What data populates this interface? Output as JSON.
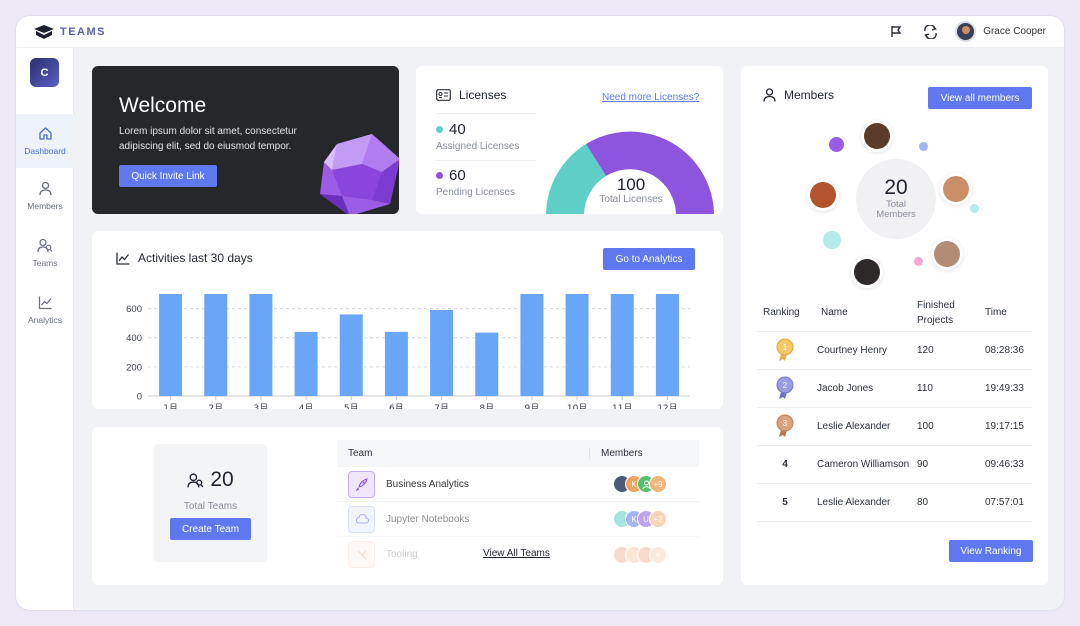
{
  "brand": {
    "name": "TEAMS"
  },
  "user": {
    "name": "Grace Cooper"
  },
  "icons": {
    "flag": "flag-icon",
    "sync": "sync-icon"
  },
  "org": {
    "initial": "C"
  },
  "nav": [
    {
      "label": "Dashboard",
      "icon": "home-icon",
      "active": true
    },
    {
      "label": "Members",
      "icon": "person-icon"
    },
    {
      "label": "Teams",
      "icon": "teams-icon"
    },
    {
      "label": "Analytics",
      "icon": "analytics-icon"
    }
  ],
  "welcome": {
    "title": "Welcome",
    "text": "Lorem ipsum dolor sit amet, consectetur adipiscing elit, sed do eiusmod tempor.",
    "button": "Quick Invite Link"
  },
  "licenses": {
    "title": "Licenses",
    "link": "Need more Licenses?",
    "assigned": {
      "value": "40",
      "label": "Assigned Licenses",
      "color": "#5ecfc7"
    },
    "pending": {
      "value": "60",
      "label": "Pending Licenses",
      "color": "#8d55dd"
    },
    "total": {
      "value": "100",
      "label": "Total Licenses"
    }
  },
  "activities": {
    "title": "Activities last 30 days",
    "button": "Go to Analytics"
  },
  "chart_data": {
    "type": "bar",
    "categories": [
      "1月",
      "2月",
      "3月",
      "4月",
      "5月",
      "6月",
      "7月",
      "8月",
      "9月",
      "10月",
      "11月",
      "12月"
    ],
    "values": [
      700,
      700,
      700,
      440,
      560,
      440,
      590,
      435,
      700,
      700,
      700,
      700
    ],
    "title": "Activities last 30 days",
    "xlabel": "",
    "ylabel": "",
    "ylim": [
      0,
      700
    ],
    "yticks": [
      0,
      200,
      400,
      600
    ],
    "grid": true,
    "color": "#6aa6f8"
  },
  "teams": {
    "total_value": "20",
    "total_label": "Total Teams",
    "create_button": "Create Team",
    "table_headers": {
      "team": "Team",
      "members": "Members"
    },
    "rows": [
      {
        "name": "Business Analytics",
        "more": "+9",
        "icon": "rocket-icon"
      },
      {
        "name": "Jupyter Notebooks",
        "more": "+2",
        "icon": "cloud-icon"
      },
      {
        "name": "Tooling",
        "more": "+",
        "icon": "tool-icon"
      }
    ],
    "view_all": "View All Teams",
    "member_initials": [
      "K",
      "K",
      "U"
    ]
  },
  "members": {
    "title": "Members",
    "view_all": "View all members",
    "total_value": "20",
    "total_label_1": "Total",
    "total_label_2": "Members",
    "ranking_headers": {
      "ranking": "Ranking",
      "name": "Name",
      "finished": "Finished Projects",
      "time": "Time"
    },
    "ranking": [
      {
        "rank": "1",
        "name": "Courtney Henry",
        "projects": "120",
        "time": "08:28:36",
        "medal": "gold"
      },
      {
        "rank": "2",
        "name": "Jacob Jones",
        "projects": "110",
        "time": "19:49:33",
        "medal": "silver"
      },
      {
        "rank": "3",
        "name": "Leslie Alexander",
        "projects": "100",
        "time": "19:17:15",
        "medal": "bronze"
      },
      {
        "rank": "4",
        "name": "Cameron Williamson",
        "projects": "90",
        "time": "09:46:33"
      },
      {
        "rank": "5",
        "name": "Leslie Alexander",
        "projects": "80",
        "time": "07:57:01"
      }
    ],
    "view_ranking": "View Ranking"
  }
}
